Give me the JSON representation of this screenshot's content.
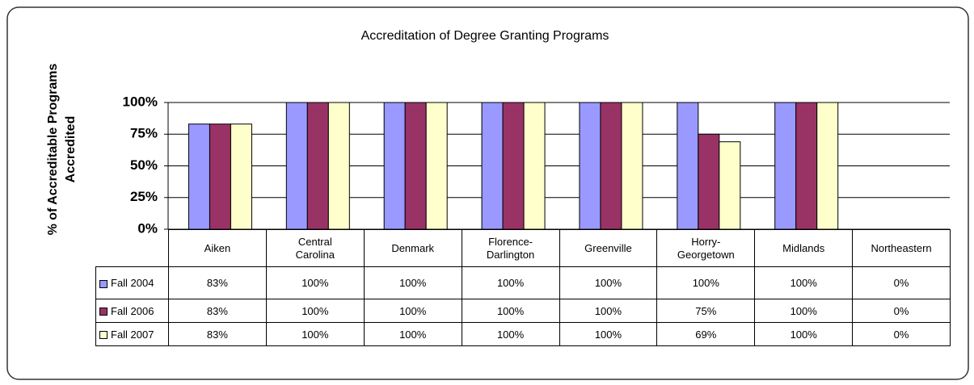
{
  "chart_data": {
    "type": "bar",
    "title": "Accreditation of Degree Granting Programs",
    "ylabel": [
      "% of Accreditable  Programs",
      "Accredited"
    ],
    "categories": [
      "Aiken",
      "Central\nCarolina",
      "Denmark",
      "Florence-\nDarlington",
      "Greenville",
      "Horry-\nGeorgetown",
      "Midlands",
      "Northeastern"
    ],
    "series": [
      {
        "name": "Fall 2004",
        "color": "#9999ff",
        "values": [
          83,
          100,
          100,
          100,
          100,
          100,
          100,
          0
        ],
        "value_labels": [
          "83%",
          "100%",
          "100%",
          "100%",
          "100%",
          "100%",
          "100%",
          "0%"
        ]
      },
      {
        "name": "Fall 2006",
        "color": "#993366",
        "values": [
          83,
          100,
          100,
          100,
          100,
          75,
          100,
          0
        ],
        "value_labels": [
          "83%",
          "100%",
          "100%",
          "100%",
          "100%",
          "75%",
          "100%",
          "0%"
        ]
      },
      {
        "name": "Fall 2007",
        "color": "#ffffcc",
        "values": [
          83,
          100,
          100,
          100,
          100,
          69,
          100,
          0
        ],
        "value_labels": [
          "83%",
          "100%",
          "100%",
          "100%",
          "100%",
          "69%",
          "100%",
          "0%"
        ]
      }
    ],
    "ylim": [
      0,
      100
    ],
    "yticks": [
      {
        "value": 0,
        "label": "0%"
      },
      {
        "value": 25,
        "label": "25%"
      },
      {
        "value": 50,
        "label": "50%"
      },
      {
        "value": 75,
        "label": "75%"
      },
      {
        "value": 100,
        "label": "100%"
      }
    ],
    "grid": true
  }
}
